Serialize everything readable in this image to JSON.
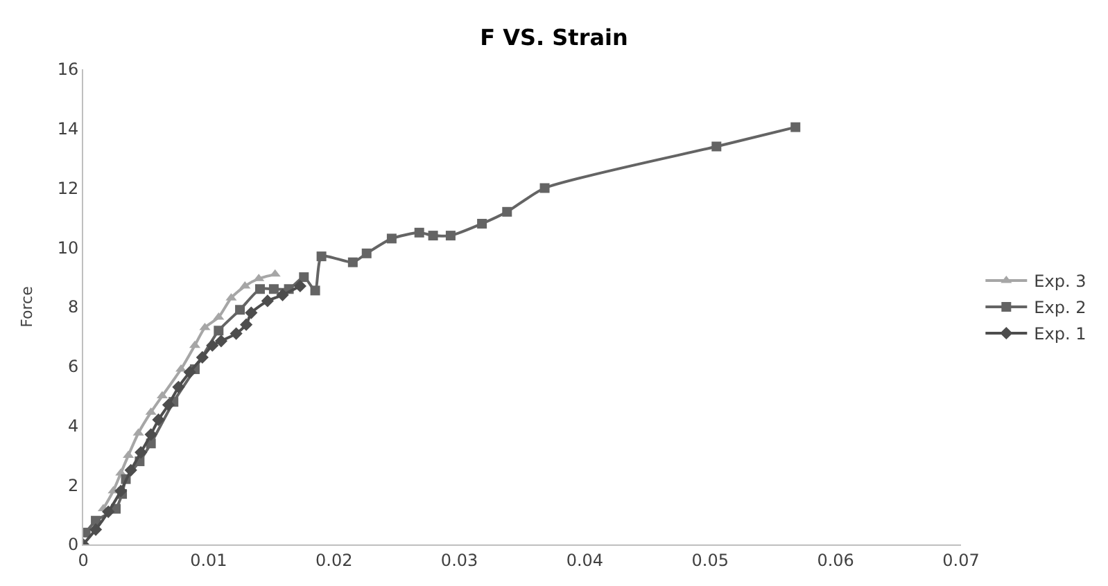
{
  "chart_data": {
    "type": "line",
    "title": "F VS. Strain",
    "ylabel": "Force",
    "xlim": [
      0,
      0.07
    ],
    "xticks": [
      0,
      0.01,
      0.02,
      0.03,
      0.04,
      0.05,
      0.06,
      0.07
    ],
    "ylim": [
      0,
      16
    ],
    "yticks": [
      0,
      2,
      4,
      6,
      8,
      10,
      12,
      14,
      16
    ],
    "legend": "right",
    "line_style": "solid",
    "series": [
      {
        "name": "Exp. 3",
        "color": "#a6a6a6",
        "marker": "triangle",
        "x": [
          0.0016,
          0.0024,
          0.003,
          0.0036,
          0.0044,
          0.0054,
          0.0063,
          0.0078,
          0.0089,
          0.0097,
          0.0108,
          0.0118,
          0.0129,
          0.014,
          0.0153
        ],
        "values": [
          1.2,
          1.8,
          2.4,
          3.0,
          3.75,
          4.45,
          5.0,
          5.9,
          6.7,
          7.3,
          7.65,
          8.3,
          8.7,
          8.95,
          9.1
        ]
      },
      {
        "name": "Exp. 2",
        "color": "#646464",
        "marker": "square",
        "x": [
          0.0002,
          0.001,
          0.0026,
          0.0031,
          0.0034,
          0.0045,
          0.0054,
          0.0072,
          0.0089,
          0.0108,
          0.0125,
          0.0141,
          0.0152,
          0.0164,
          0.0176,
          0.0185,
          0.019,
          0.0215,
          0.0226,
          0.0246,
          0.0268,
          0.0279,
          0.0293,
          0.0318,
          0.0338,
          0.0368,
          0.0505,
          0.0568
        ],
        "values": [
          0.4,
          0.8,
          1.2,
          1.7,
          2.2,
          2.8,
          3.4,
          4.8,
          5.9,
          7.2,
          7.9,
          8.6,
          8.6,
          8.6,
          9.0,
          8.55,
          9.7,
          9.5,
          9.8,
          10.3,
          10.5,
          10.4,
          10.4,
          10.8,
          11.2,
          12.0,
          13.4,
          14.05
        ]
      },
      {
        "name": "Exp. 1",
        "color": "#4d4d4d",
        "marker": "diamond",
        "x": [
          0,
          0.001,
          0.002,
          0.003,
          0.0038,
          0.0046,
          0.0054,
          0.006,
          0.0068,
          0.0076,
          0.0085,
          0.0095,
          0.0103,
          0.011,
          0.0122,
          0.013,
          0.0134,
          0.0147,
          0.0159,
          0.0173
        ],
        "values": [
          0,
          0.5,
          1.1,
          1.8,
          2.5,
          3.1,
          3.7,
          4.2,
          4.7,
          5.3,
          5.8,
          6.3,
          6.7,
          6.85,
          7.1,
          7.4,
          7.8,
          8.2,
          8.4,
          8.7
        ]
      }
    ]
  }
}
